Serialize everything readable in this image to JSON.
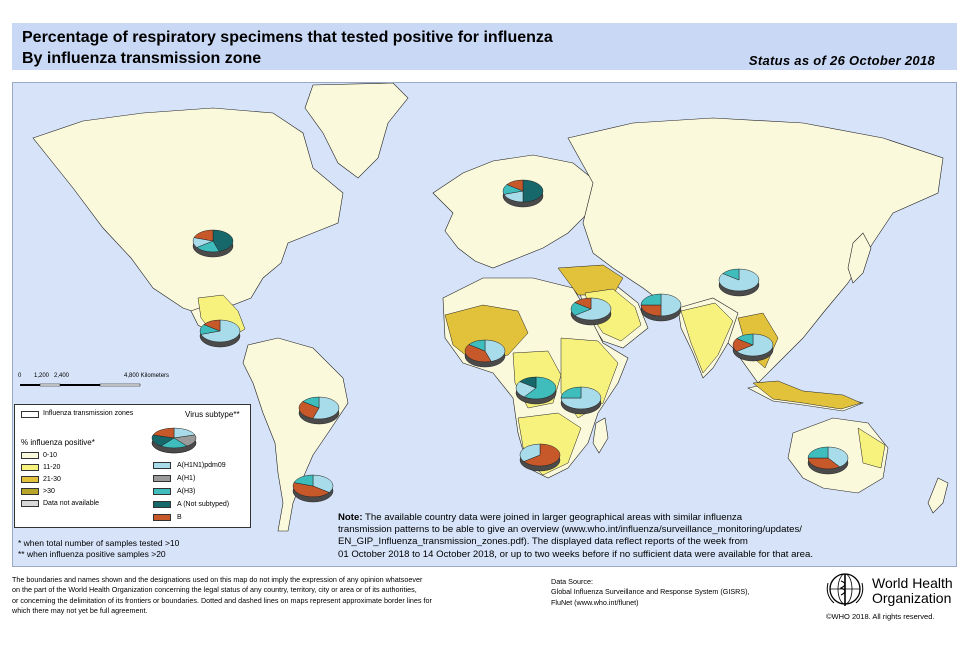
{
  "header": {
    "title_line1": "Percentage of respiratory specimens that tested positive for influenza",
    "title_line2": "By influenza transmission zone",
    "status": "Status as of 26 October 2018"
  },
  "colors": {
    "ocean": "#d6e3f8",
    "land": "#fbf9dc",
    "range_0_10": "#fbf9dc",
    "range_11_20": "#f7f17e",
    "range_21_30": "#e2c13b",
    "range_gt30": "#b7a52a",
    "no_data": "#d9d9d9",
    "h1n1pdm09": "#a9dcea",
    "h1": "#9a9a9a",
    "h3": "#3fbdbd",
    "not_subtyped": "#16686a",
    "b": "#c7582a"
  },
  "scale_bar": {
    "labels": [
      "0",
      "1,200",
      "2,400",
      "4,800 Kilometers"
    ]
  },
  "legend": {
    "zones_label": "Influenza transmission zones",
    "virus_subtype_label": "Virus subtype**",
    "positive_title": "% influenza positive*",
    "ranges": [
      "0-10",
      "11-20",
      "21-30",
      ">30",
      "Data not available"
    ],
    "subtypes": [
      "A(H1N1)pdm09",
      "A(H1)",
      "A(H3)",
      "A (Not subtyped)",
      "B"
    ]
  },
  "footnotes": {
    "star1": "*  when total number of samples tested >10",
    "star2": "** when influenza positive samples >20"
  },
  "note": {
    "label": "Note:",
    "line1": "The available country data were joined in larger geographical areas with similar influenza",
    "line2": "transmission patterns to be able to give an overview (www.who.int/influenza/surveillance_monitoring/updates/",
    "line3": "EN_GIP_Influenza_transmission_zones.pdf). The displayed data reflect reports of the week from",
    "line4": "01 October 2018 to 14 October 2018, or up to two weeks before if no sufficient data were available for that area."
  },
  "disclaimer": {
    "line1": "The boundaries and names shown and the designations used on this map do not imply the expression of any opinion whatsoever",
    "line2": "on the part of the World Health Organization concerning the legal status of any country, territory, city or area or of its authorities,",
    "line3": "or concerning the delimitation of its frontiers or boundaries. Dotted and dashed lines on maps represent approximate border lines for",
    "line4": "which there may not yet be full agreement."
  },
  "data_source": {
    "label": "Data Source:",
    "line1": "Global Influenza Surveillance and Response System (GISRS),",
    "line2": "FluNet (www.who.int/flunet)"
  },
  "who": {
    "name_line1": "World Health",
    "name_line2": "Organization",
    "copyright": "©WHO 2018. All rights reserved."
  },
  "pies": [
    {
      "zone": "North America",
      "slices": [
        {
          "t": "not_subtyped",
          "v": 45
        },
        {
          "t": "h3",
          "v": 20
        },
        {
          "t": "h1n1pdm09",
          "v": 15
        },
        {
          "t": "b",
          "v": 20
        }
      ]
    },
    {
      "zone": "Central America & Caribbean",
      "slices": [
        {
          "t": "h1n1pdm09",
          "v": 70
        },
        {
          "t": "h3",
          "v": 15
        },
        {
          "t": "b",
          "v": 15
        }
      ]
    },
    {
      "zone": "Tropical South America",
      "slices": [
        {
          "t": "h1n1pdm09",
          "v": 55
        },
        {
          "t": "b",
          "v": 30
        },
        {
          "t": "h3",
          "v": 15
        }
      ]
    },
    {
      "zone": "Temperate South America",
      "slices": [
        {
          "t": "h1n1pdm09",
          "v": 35
        },
        {
          "t": "b",
          "v": 45
        },
        {
          "t": "h3",
          "v": 20
        }
      ]
    },
    {
      "zone": "Northern Europe",
      "slices": [
        {
          "t": "not_subtyped",
          "v": 50
        },
        {
          "t": "h1n1pdm09",
          "v": 20
        },
        {
          "t": "h3",
          "v": 15
        },
        {
          "t": "b",
          "v": 15
        }
      ]
    },
    {
      "zone": "Western Africa",
      "slices": [
        {
          "t": "h1n1pdm09",
          "v": 45
        },
        {
          "t": "b",
          "v": 40
        },
        {
          "t": "h3",
          "v": 15
        }
      ]
    },
    {
      "zone": "Middle Africa",
      "slices": [
        {
          "t": "h3",
          "v": 60
        },
        {
          "t": "h1n1pdm09",
          "v": 25
        },
        {
          "t": "not_subtyped",
          "v": 15
        }
      ]
    },
    {
      "zone": "Eastern Africa",
      "slices": [
        {
          "t": "h1n1pdm09",
          "v": 75
        },
        {
          "t": "h3",
          "v": 25
        }
      ]
    },
    {
      "zone": "Southern Africa",
      "slices": [
        {
          "t": "b",
          "v": 65
        },
        {
          "t": "h1n1pdm09",
          "v": 35
        }
      ]
    },
    {
      "zone": "Western Asia",
      "slices": [
        {
          "t": "h1n1pdm09",
          "v": 65
        },
        {
          "t": "h3",
          "v": 20
        },
        {
          "t": "b",
          "v": 15
        }
      ]
    },
    {
      "zone": "Southern Asia",
      "slices": [
        {
          "t": "h1n1pdm09",
          "v": 50
        },
        {
          "t": "b",
          "v": 25
        },
        {
          "t": "h3",
          "v": 25
        }
      ]
    },
    {
      "zone": "Eastern Asia",
      "slices": [
        {
          "t": "h1n1pdm09",
          "v": 85
        },
        {
          "t": "h3",
          "v": 15
        }
      ]
    },
    {
      "zone": "South-East Asia",
      "slices": [
        {
          "t": "h1n1pdm09",
          "v": 65
        },
        {
          "t": "b",
          "v": 20
        },
        {
          "t": "h3",
          "v": 15
        }
      ]
    },
    {
      "zone": "Oceania",
      "slices": [
        {
          "t": "h1n1pdm09",
          "v": 40
        },
        {
          "t": "b",
          "v": 35
        },
        {
          "t": "h3",
          "v": 25
        }
      ]
    }
  ]
}
